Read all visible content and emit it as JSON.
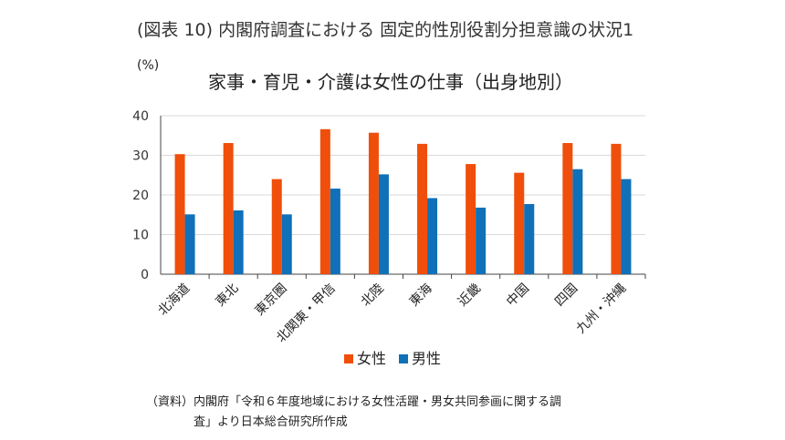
{
  "header": {
    "title": "(図表 10) 内閣府調査における 固定的性別役割分担意識の状況1"
  },
  "chart_data": {
    "type": "bar",
    "title": "家事・育児・介護は女性の仕事（出身地別）",
    "ylabel": "(%)",
    "xlabel": "",
    "ylim": [
      0,
      40
    ],
    "yticks": [
      "0",
      "10",
      "20",
      "30",
      "40"
    ],
    "grid": true,
    "legend_position": "bottom",
    "categories": [
      "北海道",
      "東北",
      "東京圏",
      "北関東・甲信",
      "北陸",
      "東海",
      "近畿",
      "中国",
      "四国",
      "九州・沖縄"
    ],
    "series": [
      {
        "name": "女性",
        "color": "#f04e0b",
        "values": [
          30.3,
          33.1,
          24.0,
          36.6,
          35.7,
          32.9,
          27.8,
          25.6,
          33.1,
          32.9
        ]
      },
      {
        "name": "男性",
        "color": "#1070b8",
        "values": [
          15.1,
          16.1,
          15.1,
          21.6,
          25.2,
          19.2,
          16.8,
          17.7,
          26.5,
          24.0
        ]
      }
    ]
  },
  "footer": {
    "source_line1": "（資料）内閣府「令和６年度地域における女性活躍・男女共同参画に関する調",
    "source_line2": "査」より日本総合研究所作成"
  }
}
